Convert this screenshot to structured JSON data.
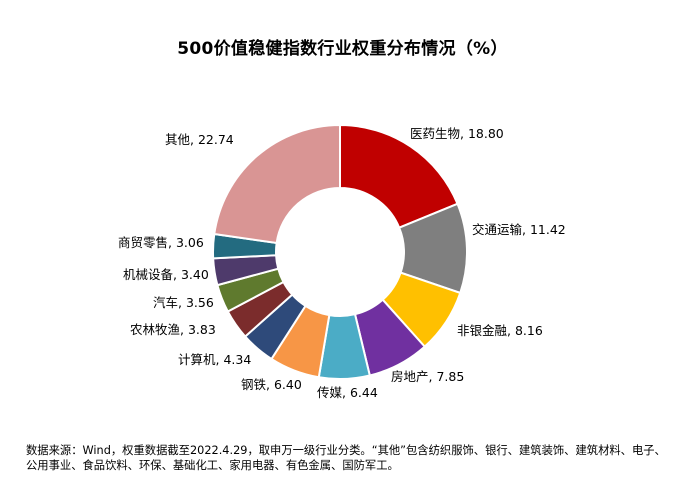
{
  "title": "500价值稳健指数行业权重分布情况（%）",
  "chart_data": {
    "type": "pie",
    "variant": "donut",
    "title": "500价值稳健指数行业权重分布情况（%）",
    "unit": "%",
    "slices": [
      {
        "label": "医药生物",
        "value": 18.8,
        "display": "医药生物, 18.80",
        "color": "#c00000"
      },
      {
        "label": "交通运输",
        "value": 11.42,
        "display": "交通运输, 11.42",
        "color": "#7f7f7f"
      },
      {
        "label": "非银金融",
        "value": 8.16,
        "display": "非银金融, 8.16",
        "color": "#ffc000"
      },
      {
        "label": "房地产",
        "value": 7.85,
        "display": "房地产, 7.85",
        "color": "#7030a0"
      },
      {
        "label": "传媒",
        "value": 6.44,
        "display": "传媒, 6.44",
        "color": "#4bacc6"
      },
      {
        "label": "钢铁",
        "value": 6.4,
        "display": "钢铁, 6.40",
        "color": "#f79646"
      },
      {
        "label": "计算机",
        "value": 4.34,
        "display": "计算机, 4.34",
        "color": "#2e4a7a"
      },
      {
        "label": "农林牧渔",
        "value": 3.83,
        "display": "农林牧渔, 3.83",
        "color": "#7b2c2c"
      },
      {
        "label": "汽车",
        "value": 3.56,
        "display": "汽车, 3.56",
        "color": "#5f7a2e"
      },
      {
        "label": "机械设备",
        "value": 3.4,
        "display": "机械设备, 3.40",
        "color": "#4e3a6b"
      },
      {
        "label": "商贸零售",
        "value": 3.06,
        "display": "商贸零售, 3.06",
        "color": "#236b80"
      },
      {
        "label": "其他",
        "value": 22.74,
        "display": "其他, 22.74",
        "color": "#d99594"
      }
    ]
  },
  "source_note": "数据来源：Wind，权重数据截至2022.4.29，取申万一级行业分类。“其他”包含纺织服饰、银行、建筑装饰、建筑材料、电子、公用事业、食品饮料、环保、基础化工、家用电器、有色金属、国防军工。"
}
